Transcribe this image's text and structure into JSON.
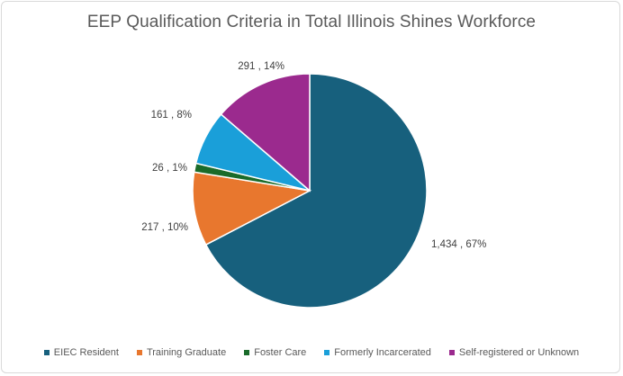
{
  "chart_data": {
    "type": "pie",
    "title": "EEP Qualification Criteria in Total Illinois Shines Workforce",
    "legend_position": "bottom",
    "slices": [
      {
        "category": "EIEC Resident",
        "value": 1434,
        "label": "1,434 , 67%",
        "color": "#17607d"
      },
      {
        "category": "Training Graduate",
        "value": 217,
        "label": "217 , 10%",
        "color": "#e8772e"
      },
      {
        "category": "Foster Care",
        "value": 26,
        "label": "26 , 1%",
        "color": "#1a6b2a"
      },
      {
        "category": "Formerly Incarcerated",
        "value": 161,
        "label": "161 , 8%",
        "color": "#1a9fd9"
      },
      {
        "category": "Self-registered or Unknown",
        "value": 291,
        "label": "291 , 14%",
        "color": "#9b2a8e"
      }
    ]
  }
}
